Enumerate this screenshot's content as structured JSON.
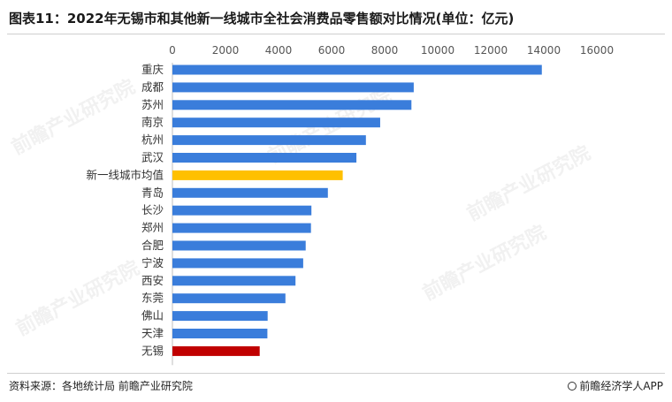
{
  "title": "图表11：2022年无锡市和其他新一线城市全社会消费品零售额对比情况(单位：亿元)",
  "footer": {
    "source": "资料来源：各地统计局 前瞻产业研究院",
    "brand": "前瞻经济学人APP"
  },
  "watermark": "前瞻产业研究院",
  "colors": {
    "default": "#3a7ddb",
    "average": "#ffc000",
    "highlight": "#c00000"
  },
  "chart_data": {
    "type": "bar",
    "orientation": "horizontal",
    "xlim": [
      0,
      16000
    ],
    "ticks": [
      0,
      2000,
      4000,
      6000,
      8000,
      10000,
      12000,
      14000,
      16000
    ],
    "categories": [
      "重庆",
      "成都",
      "苏州",
      "南京",
      "杭州",
      "武汉",
      "新一线城市均值",
      "青岛",
      "长沙",
      "郑州",
      "合肥",
      "宁波",
      "西安",
      "东莞",
      "佛山",
      "天津",
      "无锡"
    ],
    "values": [
      13926,
      9097,
      9010,
      7832,
      7294,
      6936,
      6420,
      5860,
      5240,
      5223,
      5024,
      4930,
      4640,
      4260,
      3590,
      3580,
      3290
    ],
    "bar_colors": [
      "default",
      "default",
      "default",
      "default",
      "default",
      "default",
      "average",
      "default",
      "default",
      "default",
      "default",
      "default",
      "default",
      "default",
      "default",
      "default",
      "highlight"
    ]
  }
}
